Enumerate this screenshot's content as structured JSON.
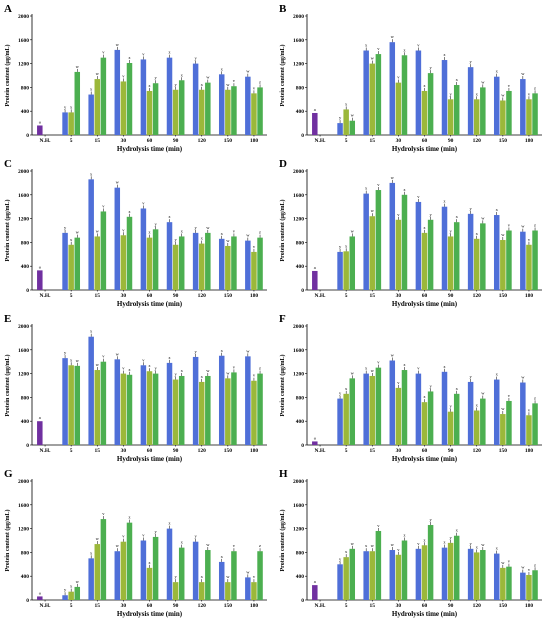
{
  "colors": {
    "control": "#7030a0",
    "s1": "#4f6fd8",
    "s2": "#9bb83a",
    "s3": "#4caf50"
  },
  "chart_data": [
    {
      "type": "bar",
      "panel": "A",
      "categories": [
        "N.H.",
        "5",
        "15",
        "30",
        "60",
        "90",
        "120",
        "150",
        "180"
      ],
      "xlabel": "Hydrolysis time (min)",
      "ylabel": "Protein content (µg/mL)",
      "ylim": [
        0,
        2000
      ],
      "yticks": [
        0,
        400,
        800,
        1200,
        1600,
        2000
      ],
      "series": [
        {
          "values": [
            160,
            380,
            680,
            1430,
            1270,
            1300,
            1200,
            1020,
            980
          ]
        },
        {
          "values": [
            null,
            380,
            940,
            900,
            740,
            760,
            760,
            760,
            700
          ]
        },
        {
          "values": [
            null,
            1060,
            1300,
            1210,
            870,
            920,
            880,
            820,
            800
          ]
        }
      ]
    },
    {
      "type": "bar",
      "panel": "B",
      "categories": [
        "N.H.",
        "5",
        "15",
        "30",
        "60",
        "90",
        "120",
        "150",
        "180"
      ],
      "xlabel": "Hydrolysis time (min)",
      "ylabel": "Protein content (µg/mL)",
      "ylim": [
        0,
        2000
      ],
      "yticks": [
        0,
        400,
        800,
        1200,
        1600,
        2000
      ],
      "series": [
        {
          "values": [
            370,
            200,
            1420,
            1560,
            1420,
            1260,
            1140,
            980,
            940
          ]
        },
        {
          "values": [
            null,
            430,
            1200,
            880,
            740,
            600,
            600,
            580,
            600
          ]
        },
        {
          "values": [
            null,
            240,
            1360,
            1340,
            1040,
            840,
            800,
            740,
            700
          ]
        }
      ]
    },
    {
      "type": "bar",
      "panel": "C",
      "categories": [
        "N.H.",
        "5",
        "15",
        "30",
        "60",
        "90",
        "120",
        "150",
        "180"
      ],
      "xlabel": "Hydrolysis time (min)",
      "ylabel": "Protein content (µg/mL)",
      "ylim": [
        0,
        2000
      ],
      "yticks": [
        0,
        400,
        800,
        1200,
        1600,
        2000
      ],
      "series": [
        {
          "values": [
            330,
            960,
            1860,
            1720,
            1370,
            1140,
            960,
            860,
            830
          ]
        },
        {
          "values": [
            null,
            760,
            900,
            920,
            880,
            760,
            780,
            740,
            640
          ]
        },
        {
          "values": [
            null,
            880,
            1320,
            1230,
            1020,
            900,
            960,
            900,
            880
          ]
        }
      ]
    },
    {
      "type": "bar",
      "panel": "D",
      "categories": [
        "N.H.",
        "5",
        "15",
        "30",
        "60",
        "90",
        "120",
        "150",
        "180"
      ],
      "xlabel": "Hydrolysis time (min)",
      "ylabel": "Protein content (µg/mL)",
      "ylim": [
        0,
        2000
      ],
      "yticks": [
        0,
        400,
        800,
        1200,
        1600,
        2000
      ],
      "series": [
        {
          "values": [
            320,
            640,
            1620,
            1800,
            1480,
            1400,
            1280,
            1260,
            980
          ]
        },
        {
          "values": [
            null,
            650,
            1240,
            1180,
            960,
            900,
            860,
            840,
            760
          ]
        },
        {
          "values": [
            null,
            900,
            1680,
            1600,
            1180,
            1140,
            1120,
            1000,
            1000
          ]
        }
      ]
    },
    {
      "type": "bar",
      "panel": "E",
      "categories": [
        "N.H.",
        "5",
        "15",
        "30",
        "60",
        "90",
        "120",
        "150",
        "180"
      ],
      "xlabel": "Hydrolysis time (min)",
      "ylabel": "Protein content (µg/mL)",
      "ylim": [
        0,
        2000
      ],
      "yticks": [
        0,
        400,
        800,
        1200,
        1600,
        2000
      ],
      "series": [
        {
          "values": [
            400,
            1460,
            1820,
            1440,
            1340,
            1380,
            1480,
            1500,
            1490
          ]
        },
        {
          "values": [
            null,
            1340,
            1260,
            1200,
            1240,
            1100,
            1060,
            1120,
            1080
          ]
        },
        {
          "values": [
            null,
            1330,
            1400,
            1180,
            1200,
            1160,
            1160,
            1220,
            1200
          ]
        }
      ]
    },
    {
      "type": "bar",
      "panel": "F",
      "categories": [
        "N.H.",
        "5",
        "15",
        "30",
        "60",
        "90",
        "120",
        "150",
        "180"
      ],
      "xlabel": "Hydrolysis time (min)",
      "ylabel": "Protein content (µg/mL)",
      "ylim": [
        0,
        2000
      ],
      "yticks": [
        0,
        400,
        800,
        1200,
        1600,
        2000
      ],
      "series": [
        {
          "values": [
            60,
            780,
            1200,
            1420,
            1200,
            1230,
            1060,
            1100,
            1050
          ]
        },
        {
          "values": [
            null,
            860,
            1160,
            960,
            720,
            560,
            580,
            520,
            500
          ]
        },
        {
          "values": [
            null,
            1120,
            1300,
            1260,
            900,
            860,
            780,
            740,
            700
          ]
        }
      ]
    },
    {
      "type": "bar",
      "panel": "G",
      "categories": [
        "N.H.",
        "5",
        "15",
        "30",
        "60",
        "90",
        "120",
        "150",
        "180"
      ],
      "xlabel": "Hydrolysis time (min)",
      "ylabel": "Protein content (µg/mL)",
      "ylim": [
        0,
        2000
      ],
      "yticks": [
        0,
        400,
        800,
        1200,
        1600,
        2000
      ],
      "series": [
        {
          "values": [
            60,
            80,
            700,
            820,
            1000,
            1200,
            980,
            640,
            380
          ]
        },
        {
          "values": [
            null,
            140,
            940,
            980,
            540,
            300,
            300,
            300,
            300
          ]
        },
        {
          "values": [
            null,
            220,
            1360,
            1300,
            1060,
            880,
            840,
            820,
            820
          ]
        }
      ]
    },
    {
      "type": "bar",
      "panel": "H",
      "categories": [
        "N.H.",
        "5",
        "15",
        "30",
        "60",
        "90",
        "120",
        "150",
        "180"
      ],
      "xlabel": "Hydrolysis time (min)",
      "ylabel": "Protein content (µg/mL)",
      "ylim": [
        0,
        2000
      ],
      "yticks": [
        0,
        400,
        800,
        1200,
        1600,
        2000
      ],
      "series": [
        {
          "values": [
            250,
            600,
            820,
            840,
            860,
            880,
            860,
            780,
            460
          ]
        },
        {
          "values": [
            null,
            720,
            820,
            760,
            920,
            960,
            800,
            540,
            420
          ]
        },
        {
          "values": [
            null,
            860,
            1160,
            1000,
            1260,
            1080,
            840,
            560,
            500
          ]
        }
      ]
    }
  ]
}
